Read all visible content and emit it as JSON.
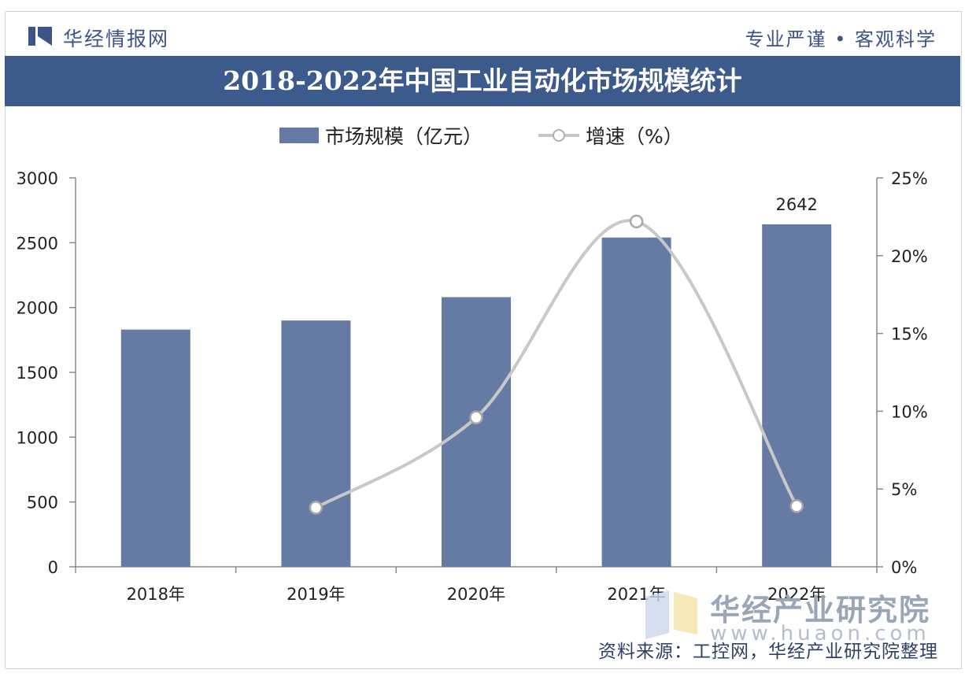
{
  "header": {
    "brand_name": "华经情报网",
    "slogan": "专业严谨 • 客观科学"
  },
  "watermark": {
    "name": "华经产业研究院",
    "url": "www.huaon.com"
  },
  "source": "资料来源：工控网，华经产业研究院整理",
  "colors": {
    "bar": "#667ba4",
    "line": "#c8c8c8",
    "title_bg": "#3d5a8c",
    "brand": "#3d5486"
  },
  "chart_data": {
    "type": "bar",
    "title": "2018-2022年中国工业自动化市场规模统计",
    "categories": [
      "2018年",
      "2019年",
      "2020年",
      "2021年",
      "2022年"
    ],
    "series": [
      {
        "name": "市场规模（亿元）",
        "type": "bar",
        "axis": "left",
        "values": [
          1830,
          1900,
          2080,
          2540,
          2642
        ]
      },
      {
        "name": "增速（%）",
        "type": "line",
        "axis": "right",
        "values": [
          null,
          3.8,
          9.6,
          22.2,
          3.9
        ]
      }
    ],
    "data_labels": [
      {
        "category": "2022年",
        "series": "市场规模（亿元）",
        "text": "2642"
      }
    ],
    "ylim_left": [
      0,
      3000
    ],
    "yticks_left": [
      "0",
      "500",
      "1000",
      "1500",
      "2000",
      "2500",
      "3000"
    ],
    "ylim_right": [
      0,
      25
    ],
    "yticks_right": [
      "0%",
      "5%",
      "10%",
      "15%",
      "20%",
      "25%"
    ],
    "grid": false,
    "legend": "top-center"
  }
}
